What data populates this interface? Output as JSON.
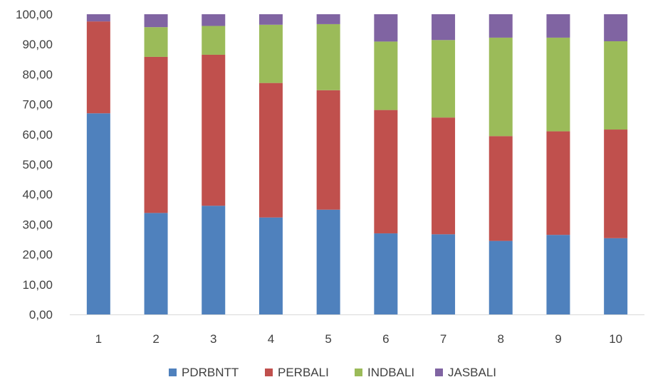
{
  "chart_data": {
    "type": "bar",
    "stacked": true,
    "categories": [
      "1",
      "2",
      "3",
      "4",
      "5",
      "6",
      "7",
      "8",
      "9",
      "10"
    ],
    "series": [
      {
        "name": "PDRBNTT",
        "color": "#4F81BD",
        "values": [
          67.0,
          33.8,
          36.2,
          32.3,
          34.9,
          27.0,
          26.7,
          24.5,
          26.5,
          25.4
        ]
      },
      {
        "name": "PERBALI",
        "color": "#C0504D",
        "values": [
          30.6,
          52.0,
          50.3,
          44.8,
          39.8,
          41.1,
          38.9,
          34.9,
          34.5,
          36.2
        ]
      },
      {
        "name": "INDBALI",
        "color": "#9BBB59",
        "values": [
          0.0,
          9.9,
          9.6,
          19.4,
          22.0,
          22.8,
          25.8,
          32.8,
          31.2,
          29.4
        ]
      },
      {
        "name": "JASBALI",
        "color": "#8064A2",
        "values": [
          2.4,
          4.3,
          3.9,
          3.5,
          3.3,
          9.1,
          8.6,
          7.8,
          7.8,
          9.0
        ]
      }
    ],
    "ylim": [
      0,
      100
    ],
    "yticks": [
      "0,00",
      "10,00",
      "20,00",
      "30,00",
      "40,00",
      "50,00",
      "60,00",
      "70,00",
      "80,00",
      "90,00",
      "100,00"
    ],
    "grid": false,
    "legend": "bottom",
    "title": "",
    "xlabel": "",
    "ylabel": ""
  }
}
